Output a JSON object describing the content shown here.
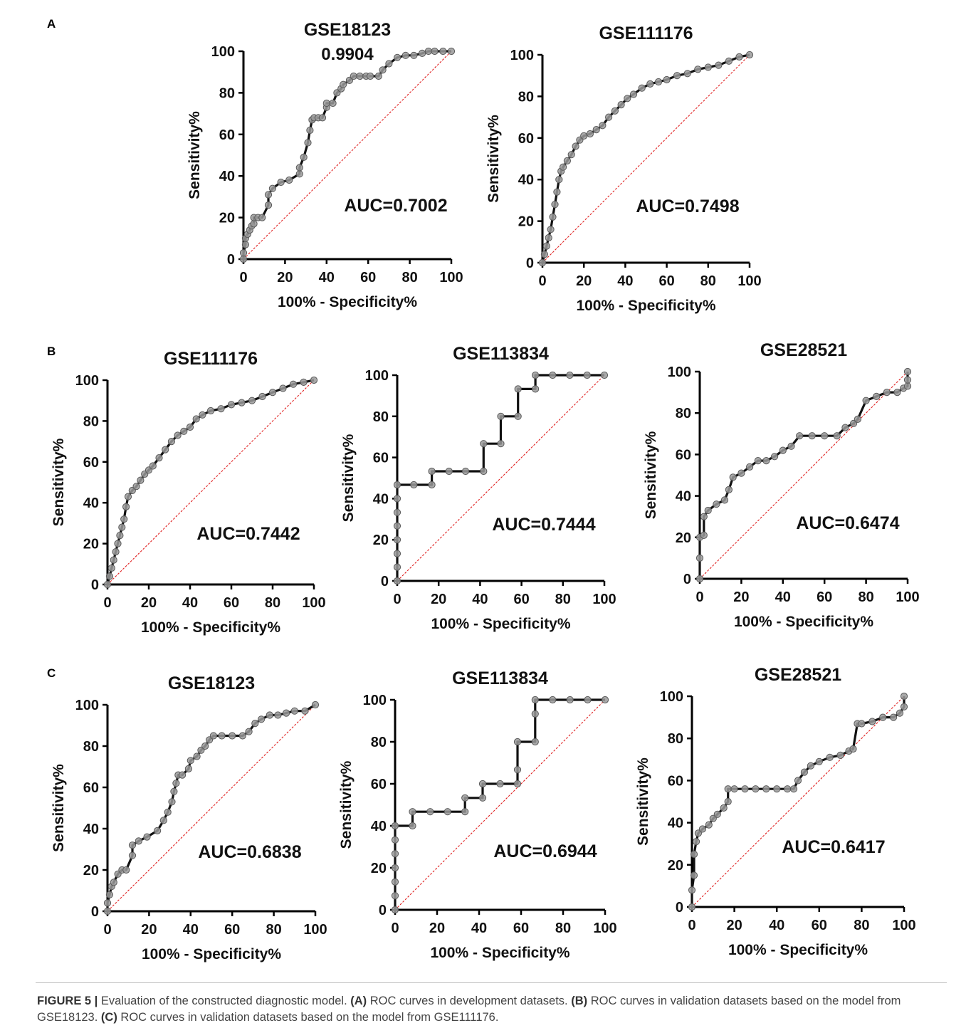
{
  "panels": [
    {
      "id": "panel-a",
      "label": "A"
    },
    {
      "id": "panel-b",
      "label": "B"
    },
    {
      "id": "panel-c",
      "label": "C"
    }
  ],
  "caption": {
    "figure_label": "FIGURE 5 |",
    "intro": " Evaluation of the constructed diagnostic model. ",
    "a_label": "(A)",
    "a_text": " ROC curves in development datasets. ",
    "b_label": "(B)",
    "b_text": " ROC curves in validation datasets based on the model from GSE18123. ",
    "c_label": "(C)",
    "c_text": " ROC curves in validation datasets based on the model from GSE111176."
  },
  "chart_data": [
    {
      "type": "line",
      "panel": "A",
      "title": "GSE18123",
      "xlabel": "100% - Specificity%",
      "ylabel": "Sensitivity%",
      "xlim": [
        0,
        100
      ],
      "ylim": [
        0,
        100
      ],
      "xticks": [
        "0",
        "20",
        "40",
        "60",
        "80",
        "100"
      ],
      "yticks": [
        "0",
        "20",
        "40",
        "60",
        "80",
        "100"
      ],
      "annotations": [
        "AUC=0.7002",
        "0.9904"
      ],
      "reference_line": true,
      "x": [
        0,
        0,
        1,
        1,
        2,
        3,
        4,
        5,
        5,
        7,
        9,
        12,
        12,
        14,
        18,
        22,
        27,
        27,
        29,
        31,
        32,
        33,
        34,
        36,
        38,
        40,
        40,
        43,
        45,
        47,
        48,
        51,
        53,
        56,
        59,
        61,
        65,
        67,
        70,
        74,
        78,
        82,
        86,
        89,
        92,
        96,
        100
      ],
      "y": [
        0,
        3,
        7,
        10,
        12,
        14,
        16,
        17,
        20,
        20,
        20,
        26,
        31,
        34,
        37,
        38,
        41,
        44,
        49,
        56,
        62,
        67,
        68,
        68,
        68,
        73,
        75,
        75,
        80,
        82,
        84,
        86,
        88,
        88,
        88,
        88,
        88,
        91,
        94,
        97,
        98,
        98,
        99,
        100,
        100,
        100,
        100
      ]
    },
    {
      "type": "line",
      "panel": "A",
      "title": "GSE111176",
      "xlabel": "100% - Specificity%",
      "ylabel": "Sensitivity%",
      "xlim": [
        0,
        100
      ],
      "ylim": [
        0,
        100
      ],
      "xticks": [
        "0",
        "20",
        "40",
        "60",
        "80",
        "100"
      ],
      "yticks": [
        "0",
        "20",
        "40",
        "60",
        "80",
        "100"
      ],
      "annotations": [
        "AUC=0.7498"
      ],
      "reference_line": true,
      "x": [
        0,
        1,
        2,
        3,
        4,
        5,
        6,
        7,
        8,
        9,
        10,
        12,
        14,
        16,
        18,
        20,
        23,
        26,
        29,
        32,
        35,
        38,
        41,
        44,
        48,
        52,
        56,
        60,
        65,
        70,
        75,
        80,
        85,
        90,
        95,
        100
      ],
      "y": [
        0,
        4,
        8,
        12,
        16,
        22,
        28,
        34,
        40,
        44,
        46,
        49,
        52,
        56,
        59,
        61,
        62,
        64,
        66,
        70,
        73,
        76,
        79,
        81,
        84,
        86,
        87,
        88,
        90,
        91,
        93,
        94,
        95,
        97,
        99,
        100
      ]
    },
    {
      "type": "line",
      "panel": "B",
      "title": "GSE111176",
      "xlabel": "100% - Specificity%",
      "ylabel": "Sensitivity%",
      "xlim": [
        0,
        100
      ],
      "ylim": [
        0,
        100
      ],
      "xticks": [
        "0",
        "20",
        "40",
        "60",
        "80",
        "100"
      ],
      "yticks": [
        "0",
        "20",
        "40",
        "60",
        "80",
        "100"
      ],
      "annotations": [
        "AUC=0.7442"
      ],
      "reference_line": true,
      "x": [
        0,
        1,
        2,
        3,
        4,
        5,
        6,
        7,
        8,
        9,
        10,
        12,
        14,
        16,
        18,
        20,
        22,
        25,
        28,
        31,
        34,
        37,
        40,
        43,
        46,
        50,
        55,
        60,
        65,
        70,
        75,
        80,
        85,
        90,
        95,
        100
      ],
      "y": [
        0,
        4,
        8,
        12,
        16,
        20,
        24,
        28,
        32,
        38,
        43,
        46,
        48,
        51,
        54,
        56,
        58,
        62,
        66,
        70,
        73,
        75,
        77,
        81,
        83,
        85,
        86,
        88,
        89,
        90,
        92,
        94,
        96,
        98,
        99,
        100
      ]
    },
    {
      "type": "line",
      "panel": "B",
      "title": "GSE113834",
      "xlabel": "100% - Specificity%",
      "ylabel": "Sensitivity%",
      "xlim": [
        0,
        100
      ],
      "ylim": [
        0,
        100
      ],
      "xticks": [
        "0",
        "20",
        "40",
        "60",
        "80",
        "100"
      ],
      "yticks": [
        "0",
        "20",
        "40",
        "60",
        "80",
        "100"
      ],
      "annotations": [
        "AUC=0.7444"
      ],
      "reference_line": true,
      "x": [
        0,
        0,
        0,
        0,
        0,
        0,
        0,
        0,
        8,
        16.7,
        16.7,
        25,
        33,
        41.7,
        41.7,
        50,
        50,
        58.3,
        58.3,
        66.7,
        66.7,
        75,
        83.3,
        91.7,
        100
      ],
      "y": [
        0,
        6.7,
        13.3,
        20,
        26.7,
        33.3,
        40,
        46.7,
        46.7,
        46.7,
        53.3,
        53.3,
        53.3,
        53.3,
        66.7,
        66.7,
        80,
        80,
        93.3,
        93.3,
        100,
        100,
        100,
        100,
        100
      ]
    },
    {
      "type": "line",
      "panel": "B",
      "title": "GSE28521",
      "xlabel": "100% - Specificity%",
      "ylabel": "Sensitivity%",
      "xlim": [
        0,
        100
      ],
      "ylim": [
        0,
        100
      ],
      "xticks": [
        "0",
        "20",
        "40",
        "60",
        "80",
        "100"
      ],
      "yticks": [
        "0",
        "20",
        "40",
        "60",
        "80",
        "100"
      ],
      "annotations": [
        "AUC=0.6474"
      ],
      "reference_line": true,
      "x": [
        0,
        0,
        0,
        2,
        2,
        4,
        8,
        12,
        14,
        16,
        20,
        24,
        28,
        32,
        36,
        40,
        44,
        48,
        54,
        60,
        66,
        70,
        74,
        76,
        80,
        85,
        90,
        95,
        98,
        100,
        100,
        100
      ],
      "y": [
        0,
        10,
        20,
        21,
        30,
        33,
        36,
        38,
        43,
        49,
        51,
        54,
        57,
        57,
        59,
        62,
        64,
        69,
        69,
        69,
        69,
        73,
        75,
        77,
        86,
        88,
        90,
        90,
        92,
        93,
        96,
        100
      ]
    },
    {
      "type": "line",
      "panel": "C",
      "title": "GSE18123",
      "xlabel": "100% - Specificity%",
      "ylabel": "Sensitivity%",
      "xlim": [
        0,
        100
      ],
      "ylim": [
        0,
        100
      ],
      "xticks": [
        "0",
        "20",
        "40",
        "60",
        "80",
        "100"
      ],
      "yticks": [
        "0",
        "20",
        "40",
        "60",
        "80",
        "100"
      ],
      "annotations": [
        "AUC=0.6838"
      ],
      "reference_line": true,
      "x": [
        0,
        0,
        1,
        2,
        3,
        5,
        7,
        9,
        12,
        12,
        15,
        19,
        24,
        27,
        29,
        31,
        32,
        33,
        34,
        36,
        39,
        40,
        43,
        45,
        47,
        49,
        51,
        55,
        60,
        65,
        68,
        71,
        74,
        78,
        82,
        86,
        90,
        95,
        100
      ],
      "y": [
        0,
        4,
        8,
        12,
        14,
        18,
        20,
        20,
        27,
        32,
        34,
        36,
        39,
        44,
        48,
        53,
        58,
        62,
        66,
        66,
        69,
        73,
        75,
        78,
        80,
        83,
        85,
        85,
        85,
        85,
        87,
        91,
        93,
        95,
        95,
        96,
        97,
        97,
        100
      ]
    },
    {
      "type": "line",
      "panel": "C",
      "title": "GSE113834",
      "xlabel": "100% - Specificity%",
      "ylabel": "Sensitivity%",
      "xlim": [
        0,
        100
      ],
      "ylim": [
        0,
        100
      ],
      "xticks": [
        "0",
        "20",
        "40",
        "60",
        "80",
        "100"
      ],
      "yticks": [
        "0",
        "20",
        "40",
        "60",
        "80",
        "100"
      ],
      "annotations": [
        "AUC=0.6944"
      ],
      "reference_line": true,
      "x": [
        0,
        0,
        0,
        0,
        0,
        0,
        0,
        8.3,
        8.3,
        16.7,
        25,
        33.3,
        33.3,
        41.7,
        41.7,
        50,
        58.3,
        58.3,
        58.3,
        66.7,
        66.7,
        66.7,
        75,
        83.3,
        91.7,
        100
      ],
      "y": [
        0,
        6.7,
        13.3,
        20,
        26.7,
        33.3,
        40,
        40,
        46.7,
        46.7,
        46.7,
        46.7,
        53.3,
        53.3,
        60,
        60,
        60,
        66.7,
        80,
        80,
        93.3,
        100,
        100,
        100,
        100,
        100
      ]
    },
    {
      "type": "line",
      "panel": "C",
      "title": "GSE28521",
      "xlabel": "100% - Specificity%",
      "ylabel": "Sensitivity%",
      "xlim": [
        0,
        100
      ],
      "ylim": [
        0,
        100
      ],
      "xticks": [
        "0",
        "20",
        "40",
        "60",
        "80",
        "100"
      ],
      "yticks": [
        "0",
        "20",
        "40",
        "60",
        "80",
        "100"
      ],
      "annotations": [
        "AUC=0.6417"
      ],
      "reference_line": true,
      "x": [
        0,
        0,
        1,
        1,
        2,
        3,
        5,
        8,
        10,
        12,
        15,
        17,
        17,
        20,
        25,
        30,
        35,
        40,
        45,
        48,
        50,
        53,
        56,
        60,
        65,
        70,
        74,
        76,
        78,
        80,
        85,
        90,
        95,
        98,
        100,
        100
      ],
      "y": [
        0,
        8,
        15,
        25,
        31,
        35,
        37,
        39,
        42,
        44,
        47,
        50,
        56,
        56,
        56,
        56,
        56,
        56,
        56,
        56,
        60,
        64,
        67,
        69,
        71,
        72,
        74,
        75,
        87,
        87,
        88,
        90,
        90,
        92,
        95,
        100
      ]
    }
  ]
}
